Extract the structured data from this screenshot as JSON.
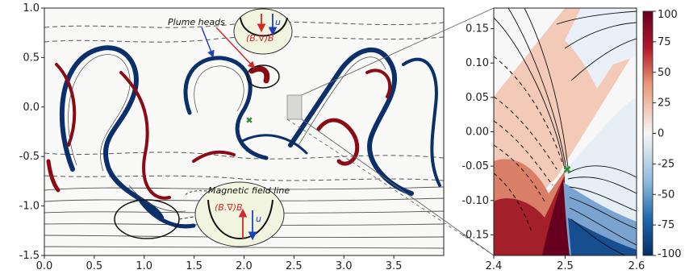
{
  "chart_data": [
    {
      "type": "heatmap",
      "panel": "main",
      "xlim": [
        0.0,
        4.0
      ],
      "ylim": [
        -1.5,
        1.0
      ],
      "x_ticks": [
        "0.0",
        "0.5",
        "1.0",
        "1.5",
        "2.0",
        "2.5",
        "3.0",
        "3.5"
      ],
      "y_ticks": [
        "1.0",
        "0.5",
        "0.0",
        "-0.5",
        "-1.0",
        "-1.5"
      ],
      "grid": false,
      "colormap": "red-white-blue (diverging)",
      "overlay": "magnetic field lines (solid and dashed contours)",
      "annotations": {
        "plume_heads": "Plume heads",
        "field_line": "Magnetic field line",
        "b_grad_b": "(B.∇)B",
        "velocity": "u"
      },
      "marker": {
        "x": 2.2,
        "y": -0.1,
        "color": "#2e8b2e"
      }
    },
    {
      "type": "heatmap",
      "panel": "zoom",
      "xlim": [
        2.4,
        2.6
      ],
      "ylim": [
        -0.18,
        0.18
      ],
      "x_ticks": [
        "2.4",
        "2.5",
        "2.6"
      ],
      "y_ticks": [
        "0.15",
        "0.10",
        "0.05",
        "0.00",
        "-0.05",
        "-0.10",
        "-0.15"
      ],
      "marker": {
        "x": 2.5,
        "y": -0.06,
        "color": "#2e8b2e"
      },
      "colorbar": {
        "min": -100,
        "max": 100,
        "ticks": [
          "100",
          "75",
          "50",
          "25",
          "0",
          "-25",
          "-50",
          "-75",
          "-100"
        ]
      }
    }
  ],
  "colors": {
    "positive": "#8b0a14",
    "negative": "#0b2f6b",
    "neutral": "#f7f7f7",
    "field_line": "#333333",
    "arrow_red": "#d62728",
    "arrow_blue": "#1f3fbf",
    "bubble_fill": "#f1f5df",
    "marker": "#2e8b2e"
  }
}
